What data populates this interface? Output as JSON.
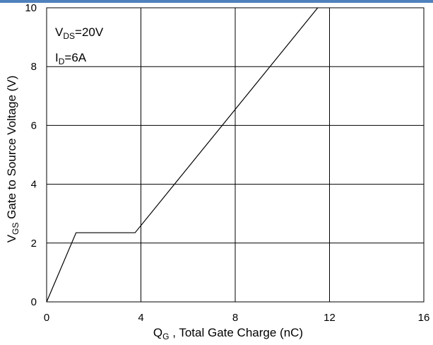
{
  "chart_data": {
    "type": "line",
    "xlabel": {
      "main": "Q",
      "sub": "G",
      "rest": " , Total Gate Charge (nC)"
    },
    "ylabel": {
      "main": "V",
      "sub": "GS",
      "rest": "  Gate to Source Voltage (V)"
    },
    "xlim": [
      0,
      16
    ],
    "ylim": [
      0,
      10
    ],
    "xticks": [
      0,
      4,
      8,
      12,
      16
    ],
    "yticks": [
      0,
      2,
      4,
      6,
      8,
      10
    ],
    "grid": true,
    "annotations": [
      {
        "main": "V",
        "sub": "DS",
        "rest": "=20V"
      },
      {
        "main": "I",
        "sub": "D",
        "rest": "=6A"
      }
    ],
    "series": [
      {
        "x": [
          0,
          1.25,
          3.75,
          11.5
        ],
        "y": [
          0,
          2.35,
          2.35,
          10
        ]
      }
    ]
  },
  "colors": {
    "line": "#000000",
    "grid": "#000000",
    "top_accent": "#4f81bd"
  }
}
